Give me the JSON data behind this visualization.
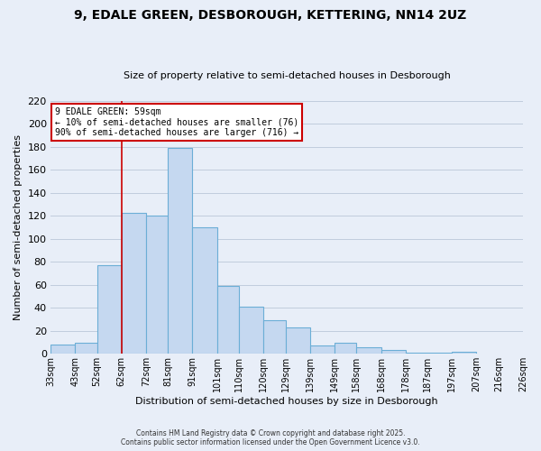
{
  "title1": "9, EDALE GREEN, DESBOROUGH, KETTERING, NN14 2UZ",
  "title2": "Size of property relative to semi-detached houses in Desborough",
  "xlabel": "Distribution of semi-detached houses by size in Desborough",
  "ylabel": "Number of semi-detached properties",
  "bar_values": [
    8,
    10,
    77,
    123,
    120,
    179,
    110,
    59,
    41,
    29,
    23,
    7,
    10,
    6,
    3,
    1,
    1,
    2
  ],
  "tick_positions": [
    33,
    43,
    52,
    62,
    72,
    81,
    91,
    101,
    110,
    120,
    129,
    139,
    149,
    158,
    168,
    178,
    187,
    197,
    207,
    216,
    226
  ],
  "tick_labels": [
    "33sqm",
    "43sqm",
    "52sqm",
    "62sqm",
    "72sqm",
    "81sqm",
    "91sqm",
    "101sqm",
    "110sqm",
    "120sqm",
    "129sqm",
    "139sqm",
    "149sqm",
    "158sqm",
    "168sqm",
    "178sqm",
    "187sqm",
    "197sqm",
    "207sqm",
    "216sqm",
    "226sqm"
  ],
  "bar_color": "#C5D8F0",
  "bar_edge_color": "#6BAED6",
  "vline_x": 62,
  "vline_color": "#CC0000",
  "ylim": [
    0,
    220
  ],
  "yticks": [
    0,
    20,
    40,
    60,
    80,
    100,
    120,
    140,
    160,
    180,
    200,
    220
  ],
  "annotation_title": "9 EDALE GREEN: 59sqm",
  "annotation_line1": "← 10% of semi-detached houses are smaller (76)",
  "annotation_line2": "90% of semi-detached houses are larger (716) →",
  "footer1": "Contains HM Land Registry data © Crown copyright and database right 2025.",
  "footer2": "Contains public sector information licensed under the Open Government Licence v3.0.",
  "bg_color": "#E8EEF8",
  "grid_color": "#C0CCDD",
  "title_fontsize": 10,
  "subtitle_fontsize": 8,
  "xlabel_fontsize": 8,
  "ylabel_fontsize": 8
}
